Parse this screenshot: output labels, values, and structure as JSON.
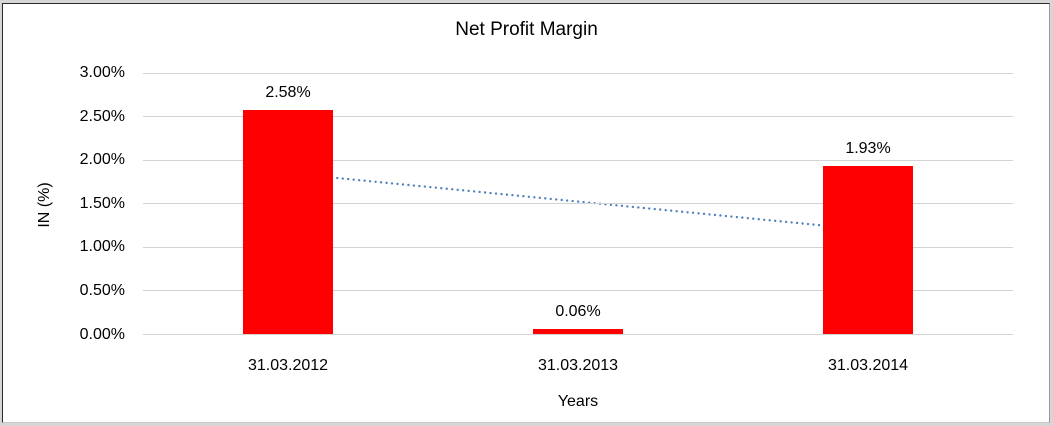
{
  "chart": {
    "title": "Net Profit Margin",
    "x_axis_title": "Years",
    "y_axis_title": "IN (%)"
  },
  "chart_data": {
    "type": "bar",
    "title": "Net Profit Margin",
    "xlabel": "Years",
    "ylabel": "IN (%)",
    "categories": [
      "31.03.2012",
      "31.03.2013",
      "31.03.2014"
    ],
    "values": [
      2.58,
      0.06,
      1.93
    ],
    "data_labels": [
      "2.58%",
      "0.06%",
      "1.93%"
    ],
    "ylim": [
      0,
      3
    ],
    "y_ticks": [
      {
        "value": 0.0,
        "label": "0.00%"
      },
      {
        "value": 0.5,
        "label": "0.50%"
      },
      {
        "value": 1.0,
        "label": "1.00%"
      },
      {
        "value": 1.5,
        "label": "1.50%"
      },
      {
        "value": 2.0,
        "label": "2.00%"
      },
      {
        "value": 2.5,
        "label": "2.50%"
      },
      {
        "value": 3.0,
        "label": "3.00%"
      }
    ],
    "grid": "horizontal",
    "legend": "none",
    "bar_color": "#FF0000",
    "trendline": {
      "type": "linear",
      "style": "dotted",
      "color": "#4F81BD",
      "points": [
        {
          "category_index": 0,
          "value": 1.85
        },
        {
          "category_index": 2,
          "value": 1.2
        }
      ]
    }
  }
}
